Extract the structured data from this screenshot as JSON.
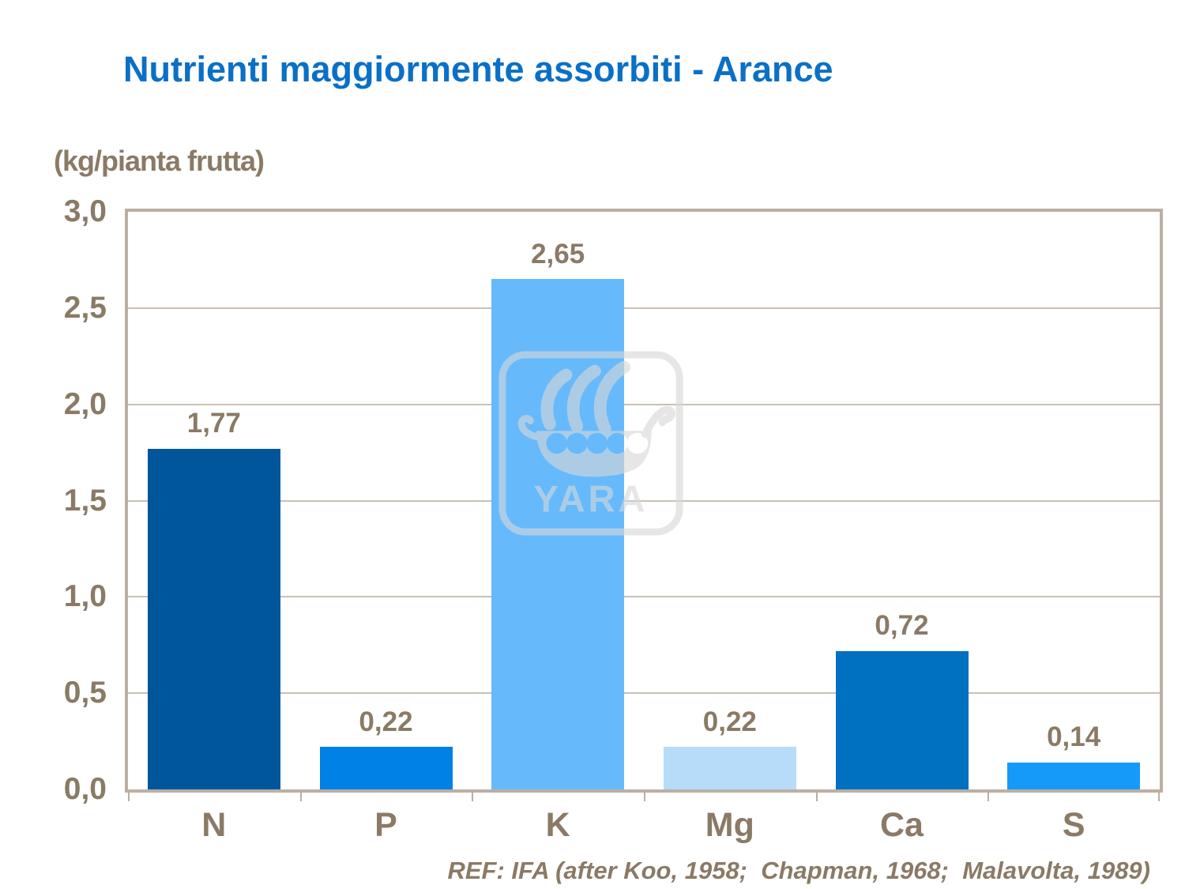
{
  "title": "Nutrienti maggiormente assorbiti - Arance",
  "unit_label": "(kg/pianta frutta)",
  "reference": "REF: IFA (after Koo, 1958;  Chapman, 1968;  Malavolta, 1989)",
  "watermark": {
    "text": "YARA",
    "icon": "yara-viking-ship-logo"
  },
  "colors": {
    "title": "#0a70c7",
    "axis_text": "#8a7a66",
    "plot_border": "#bcafa2",
    "gridline": "#cbc0b4",
    "watermark": "#d8d8d8",
    "bar_N": "#00569b",
    "bar_P": "#0081e6",
    "bar_K": "#66bafc",
    "bar_Mg": "#b7dcfa",
    "bar_Ca": "#0070c0",
    "bar_S": "#169afa"
  },
  "chart_data": {
    "type": "bar",
    "title": "Nutrienti maggiormente assorbiti - Arance",
    "ylabel": "(kg/pianta frutta)",
    "xlabel": "",
    "categories": [
      "N",
      "P",
      "K",
      "Mg",
      "Ca",
      "S"
    ],
    "values": [
      1.77,
      0.22,
      2.65,
      0.22,
      0.72,
      0.14
    ],
    "value_labels": [
      "1,77",
      "0,22",
      "2,65",
      "0,22",
      "0,72",
      "0,14"
    ],
    "bar_colors": [
      "#00569b",
      "#0081e6",
      "#66bafc",
      "#b7dcfa",
      "#0070c0",
      "#169afa"
    ],
    "ylim": [
      0,
      3
    ],
    "ytick_step": 0.5,
    "ytick_labels": [
      "0,0",
      "0,5",
      "1,0",
      "1,5",
      "2,0",
      "2,5",
      "3,0"
    ],
    "grid": true,
    "gridlines": "horizontal",
    "legend": false
  }
}
